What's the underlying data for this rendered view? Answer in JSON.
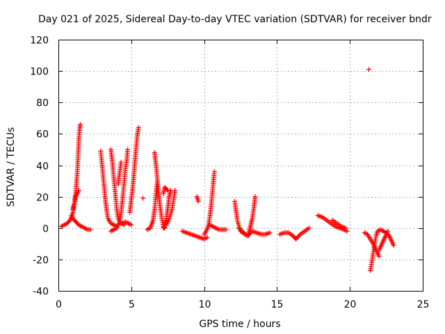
{
  "chart_data": {
    "type": "scatter",
    "title": "Day 021 of 2025, Sidereal Day-to-day VTEC variation (SDTVAR) for receiver bndr",
    "xlabel": "GPS time / hours",
    "ylabel": "SDTVAR / TECUs",
    "xlim": [
      0,
      25
    ],
    "ylim": [
      -40,
      120
    ],
    "xticks": [
      0,
      5,
      10,
      15,
      20,
      25
    ],
    "yticks": [
      -40,
      -20,
      0,
      20,
      40,
      60,
      80,
      100,
      120
    ],
    "grid": true,
    "marker": "+",
    "color": "#ff0000",
    "series": [
      {
        "name": "SDTVAR",
        "segments": [
          [
            [
              0.2,
              1
            ],
            [
              0.4,
              2
            ],
            [
              0.6,
              3
            ],
            [
              0.8,
              5
            ],
            [
              0.9,
              7
            ],
            [
              1.0,
              10
            ],
            [
              1.1,
              16
            ],
            [
              1.2,
              24
            ],
            [
              1.3,
              36
            ],
            [
              1.35,
              46
            ],
            [
              1.4,
              56
            ],
            [
              1.45,
              62
            ],
            [
              1.5,
              66
            ]
          ],
          [
            [
              0.9,
              8
            ],
            [
              1.0,
              6
            ],
            [
              1.2,
              4
            ],
            [
              1.4,
              2
            ],
            [
              1.6,
              1
            ],
            [
              1.8,
              0
            ],
            [
              2.0,
              -1
            ],
            [
              2.2,
              -1
            ]
          ],
          [
            [
              1.0,
              12
            ],
            [
              1.1,
              16
            ],
            [
              1.2,
              20
            ],
            [
              1.3,
              22
            ],
            [
              1.4,
              24
            ]
          ],
          [
            [
              2.9,
              49
            ],
            [
              3.0,
              40
            ],
            [
              3.1,
              30
            ],
            [
              3.2,
              20
            ],
            [
              3.3,
              12
            ],
            [
              3.4,
              6
            ],
            [
              3.6,
              3
            ],
            [
              3.8,
              2
            ],
            [
              4.0,
              1
            ]
          ],
          [
            [
              3.6,
              50
            ],
            [
              3.7,
              42
            ],
            [
              3.8,
              32
            ],
            [
              3.9,
              22
            ],
            [
              4.0,
              12
            ],
            [
              4.1,
              6
            ],
            [
              4.3,
              3
            ],
            [
              4.5,
              2
            ]
          ],
          [
            [
              3.6,
              -2
            ],
            [
              3.8,
              -1
            ],
            [
              4.0,
              0
            ],
            [
              4.2,
              4
            ],
            [
              4.3,
              10
            ],
            [
              4.4,
              18
            ],
            [
              4.5,
              28
            ],
            [
              4.6,
              38
            ],
            [
              4.7,
              44
            ],
            [
              4.75,
              50
            ]
          ],
          [
            [
              4.1,
              28
            ],
            [
              4.2,
              35
            ],
            [
              4.3,
              42
            ]
          ],
          [
            [
              4.4,
              3
            ],
            [
              4.6,
              4
            ],
            [
              4.8,
              3
            ],
            [
              5.0,
              2
            ]
          ],
          [
            [
              4.9,
              10
            ],
            [
              5.0,
              18
            ],
            [
              5.1,
              26
            ],
            [
              5.2,
              36
            ],
            [
              5.3,
              48
            ],
            [
              5.4,
              58
            ],
            [
              5.5,
              64
            ]
          ],
          [
            [
              5.8,
              19
            ]
          ],
          [
            [
              6.1,
              -1
            ],
            [
              6.3,
              0
            ],
            [
              6.5,
              5
            ],
            [
              6.6,
              12
            ],
            [
              6.7,
              22
            ],
            [
              6.8,
              30
            ]
          ],
          [
            [
              6.6,
              48
            ],
            [
              6.7,
              40
            ],
            [
              6.8,
              30
            ],
            [
              6.9,
              20
            ],
            [
              7.0,
              12
            ],
            [
              7.1,
              6
            ],
            [
              7.2,
              1
            ],
            [
              7.3,
              0
            ]
          ],
          [
            [
              7.2,
              0
            ],
            [
              7.4,
              5
            ],
            [
              7.5,
              12
            ],
            [
              7.6,
              20
            ],
            [
              7.7,
              24
            ]
          ],
          [
            [
              7.4,
              2
            ],
            [
              7.6,
              6
            ],
            [
              7.8,
              12
            ],
            [
              7.9,
              18
            ],
            [
              8.0,
              24
            ]
          ],
          [
            [
              7.2,
              22
            ],
            [
              7.3,
              26
            ],
            [
              7.5,
              24
            ]
          ],
          [
            [
              8.5,
              -2
            ],
            [
              8.8,
              -3
            ],
            [
              9.1,
              -4
            ],
            [
              9.4,
              -5
            ],
            [
              9.7,
              -6
            ],
            [
              10.0,
              -7
            ],
            [
              10.2,
              -6
            ]
          ],
          [
            [
              9.5,
              20
            ],
            [
              9.6,
              17
            ]
          ],
          [
            [
              10.0,
              -4
            ],
            [
              10.2,
              -1
            ],
            [
              10.3,
              2
            ],
            [
              10.4,
              8
            ],
            [
              10.5,
              16
            ],
            [
              10.6,
              26
            ],
            [
              10.7,
              36
            ]
          ],
          [
            [
              10.4,
              2
            ],
            [
              10.6,
              1
            ],
            [
              10.8,
              0
            ],
            [
              11.0,
              -1
            ],
            [
              11.3,
              -1
            ],
            [
              11.5,
              -1
            ]
          ],
          [
            [
              12.1,
              17
            ],
            [
              12.2,
              10
            ],
            [
              12.3,
              4
            ],
            [
              12.5,
              -2
            ],
            [
              12.8,
              -4
            ],
            [
              13.0,
              -5
            ]
          ],
          [
            [
              12.4,
              0
            ],
            [
              12.7,
              -3
            ],
            [
              13.0,
              -5
            ],
            [
              13.2,
              -3
            ]
          ],
          [
            [
              13.0,
              -5
            ],
            [
              13.1,
              -2
            ],
            [
              13.2,
              2
            ],
            [
              13.3,
              6
            ],
            [
              13.4,
              12
            ],
            [
              13.5,
              20
            ]
          ],
          [
            [
              13.3,
              -2
            ],
            [
              13.6,
              -3
            ],
            [
              13.9,
              -4
            ],
            [
              14.2,
              -4
            ],
            [
              14.5,
              -3
            ]
          ],
          [
            [
              15.2,
              -4
            ],
            [
              15.5,
              -3
            ],
            [
              15.8,
              -3
            ],
            [
              16.1,
              -5
            ],
            [
              16.3,
              -7
            ],
            [
              16.6,
              -4
            ],
            [
              16.9,
              -2
            ],
            [
              17.2,
              0
            ]
          ],
          [
            [
              17.8,
              8
            ],
            [
              18.1,
              7
            ],
            [
              18.4,
              5
            ],
            [
              18.7,
              3
            ],
            [
              19.0,
              1
            ],
            [
              19.3,
              0
            ],
            [
              19.6,
              -1
            ],
            [
              19.8,
              -2
            ]
          ],
          [
            [
              18.8,
              5
            ],
            [
              19.1,
              3
            ],
            [
              19.4,
              1
            ],
            [
              19.7,
              0
            ]
          ],
          [
            [
              21.3,
              101
            ]
          ],
          [
            [
              21.0,
              -3
            ],
            [
              21.2,
              -4
            ],
            [
              21.4,
              -7
            ],
            [
              21.6,
              -10
            ],
            [
              21.8,
              -14
            ],
            [
              22.0,
              -18
            ]
          ],
          [
            [
              21.4,
              -27
            ],
            [
              21.5,
              -22
            ],
            [
              21.6,
              -16
            ],
            [
              21.7,
              -10
            ],
            [
              21.8,
              -5
            ],
            [
              21.9,
              -2
            ],
            [
              22.1,
              -1
            ],
            [
              22.3,
              -2
            ]
          ],
          [
            [
              22.0,
              -14
            ],
            [
              22.2,
              -10
            ],
            [
              22.4,
              -6
            ],
            [
              22.6,
              -2
            ]
          ],
          [
            [
              22.3,
              -2
            ],
            [
              22.5,
              -3
            ],
            [
              22.7,
              -5
            ],
            [
              22.9,
              -9
            ],
            [
              23.0,
              -11
            ]
          ]
        ]
      }
    ]
  }
}
